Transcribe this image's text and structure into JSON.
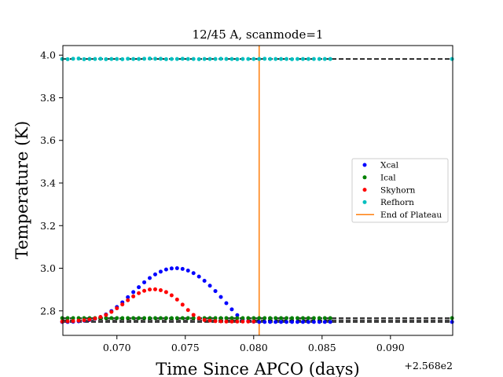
{
  "chart_data": {
    "type": "scatter",
    "title": "12/45 A, scanmode=1",
    "xlabel": "Time Since APCO (days)",
    "ylabel": "Temperature (K)",
    "x_offset_label": "+2.568e2",
    "xlim": [
      0.06605,
      0.09455
    ],
    "ylim": [
      2.685,
      4.045
    ],
    "xticks": [
      0.07,
      0.075,
      0.08,
      0.085,
      0.09
    ],
    "xtick_labels": [
      "0.070",
      "0.075",
      "0.080",
      "0.085",
      "0.090"
    ],
    "yticks": [
      2.8,
      3.0,
      3.2,
      3.4,
      3.6,
      3.8,
      4.0
    ],
    "ytick_labels": [
      "2.8",
      "3.0",
      "3.2",
      "3.4",
      "3.6",
      "3.8",
      "4.0"
    ],
    "grid": false,
    "legend_position": "center-right",
    "end_of_plateau_x": 0.0804,
    "hlines": [
      {
        "y": 3.982,
        "color": "#000000",
        "style": "dashed"
      },
      {
        "y": 2.766,
        "color": "#000000",
        "style": "dashed"
      },
      {
        "y": 2.756,
        "color": "#000000",
        "style": "dashed"
      },
      {
        "y": 2.748,
        "color": "#000000",
        "style": "dashed"
      }
    ],
    "series": [
      {
        "name": "Xcal",
        "color": "#0000ff",
        "x": [
          0.066,
          0.0664,
          0.0668,
          0.0672,
          0.0676,
          0.068,
          0.0684,
          0.0688,
          0.0692,
          0.0696,
          0.07,
          0.0704,
          0.0708,
          0.0712,
          0.0716,
          0.072,
          0.0724,
          0.0728,
          0.0732,
          0.0736,
          0.074,
          0.0744,
          0.0748,
          0.0752,
          0.0756,
          0.076,
          0.0764,
          0.0768,
          0.0772,
          0.0776,
          0.078,
          0.0784,
          0.0788,
          0.0792,
          0.0796,
          0.08,
          0.0804,
          0.0808,
          0.0812,
          0.0816,
          0.082,
          0.0824,
          0.0828,
          0.0832,
          0.0836,
          0.084,
          0.0844,
          0.0848,
          0.0852,
          0.0856,
          0.0945
        ],
        "y": [
          2.748,
          2.748,
          2.749,
          2.751,
          2.754,
          2.757,
          2.763,
          2.771,
          2.783,
          2.799,
          2.818,
          2.84,
          2.864,
          2.888,
          2.911,
          2.934,
          2.954,
          2.971,
          2.984,
          2.994,
          2.999,
          3.0,
          2.997,
          2.989,
          2.977,
          2.961,
          2.941,
          2.918,
          2.893,
          2.865,
          2.836,
          2.807,
          2.78,
          2.76,
          2.752,
          2.749,
          2.748,
          2.748,
          2.748,
          2.748,
          2.748,
          2.748,
          2.748,
          2.748,
          2.748,
          2.748,
          2.748,
          2.748,
          2.748,
          2.748,
          2.748
        ]
      },
      {
        "name": "Ical",
        "color": "#008000",
        "x": [
          0.066,
          0.0664,
          0.0668,
          0.0672,
          0.0676,
          0.068,
          0.0684,
          0.0688,
          0.0692,
          0.0696,
          0.07,
          0.0704,
          0.0708,
          0.0712,
          0.0716,
          0.072,
          0.0724,
          0.0728,
          0.0732,
          0.0736,
          0.074,
          0.0744,
          0.0748,
          0.0752,
          0.0756,
          0.076,
          0.0764,
          0.0768,
          0.0772,
          0.0776,
          0.078,
          0.0784,
          0.0788,
          0.0792,
          0.0796,
          0.08,
          0.0804,
          0.0808,
          0.0812,
          0.0816,
          0.082,
          0.0824,
          0.0828,
          0.0832,
          0.0836,
          0.084,
          0.0844,
          0.0848,
          0.0852,
          0.0856,
          0.0945
        ],
        "y": [
          2.766,
          2.766,
          2.766,
          2.766,
          2.766,
          2.766,
          2.766,
          2.766,
          2.766,
          2.766,
          2.766,
          2.766,
          2.766,
          2.766,
          2.766,
          2.766,
          2.766,
          2.766,
          2.766,
          2.766,
          2.766,
          2.766,
          2.766,
          2.766,
          2.766,
          2.766,
          2.766,
          2.766,
          2.766,
          2.766,
          2.766,
          2.766,
          2.766,
          2.766,
          2.766,
          2.766,
          2.766,
          2.766,
          2.766,
          2.766,
          2.766,
          2.766,
          2.766,
          2.766,
          2.766,
          2.766,
          2.766,
          2.766,
          2.766,
          2.766,
          2.766
        ]
      },
      {
        "name": "Skyhorn",
        "color": "#ff0000",
        "x": [
          0.066,
          0.0664,
          0.0668,
          0.0672,
          0.0676,
          0.068,
          0.0684,
          0.0688,
          0.0692,
          0.0696,
          0.07,
          0.0704,
          0.0708,
          0.0712,
          0.0716,
          0.072,
          0.0724,
          0.0728,
          0.0732,
          0.0736,
          0.074,
          0.0744,
          0.0748,
          0.0752,
          0.0756,
          0.076,
          0.0764,
          0.0768,
          0.0772,
          0.0776,
          0.078,
          0.0784,
          0.0788,
          0.0792,
          0.0796,
          0.08
        ],
        "y": [
          2.75,
          2.751,
          2.752,
          2.754,
          2.756,
          2.759,
          2.764,
          2.771,
          2.781,
          2.795,
          2.812,
          2.83,
          2.85,
          2.868,
          2.883,
          2.894,
          2.9,
          2.901,
          2.897,
          2.888,
          2.873,
          2.853,
          2.829,
          2.804,
          2.781,
          2.765,
          2.757,
          2.754,
          2.752,
          2.751,
          2.75,
          2.75,
          2.75,
          2.75,
          2.75,
          2.75
        ]
      },
      {
        "name": "Refhorn",
        "color": "#00bfbf",
        "x": [
          0.066,
          0.0664,
          0.0668,
          0.0672,
          0.0676,
          0.068,
          0.0684,
          0.0688,
          0.0692,
          0.0696,
          0.07,
          0.0704,
          0.0708,
          0.0712,
          0.0716,
          0.072,
          0.0724,
          0.0728,
          0.0732,
          0.0736,
          0.074,
          0.0744,
          0.0748,
          0.0752,
          0.0756,
          0.076,
          0.0764,
          0.0768,
          0.0772,
          0.0776,
          0.078,
          0.0784,
          0.0788,
          0.0792,
          0.0796,
          0.08,
          0.0804,
          0.0808,
          0.0812,
          0.0816,
          0.082,
          0.0824,
          0.0828,
          0.0832,
          0.0836,
          0.084,
          0.0844,
          0.0848,
          0.0852,
          0.0856,
          0.0945
        ],
        "y": [
          3.982,
          3.981,
          3.983,
          3.984,
          3.981,
          3.982,
          3.982,
          3.983,
          3.981,
          3.982,
          3.982,
          3.981,
          3.983,
          3.982,
          3.982,
          3.983,
          3.984,
          3.983,
          3.983,
          3.981,
          3.982,
          3.982,
          3.983,
          3.982,
          3.982,
          3.981,
          3.982,
          3.982,
          3.982,
          3.983,
          3.982,
          3.982,
          3.981,
          3.982,
          3.982,
          3.982,
          3.982,
          3.983,
          3.982,
          3.982,
          3.982,
          3.982,
          3.981,
          3.982,
          3.982,
          3.982,
          3.982,
          3.982,
          3.982,
          3.982,
          3.982
        ]
      }
    ],
    "legend": [
      {
        "label": "Xcal",
        "color": "#0000ff",
        "kind": "marker"
      },
      {
        "label": "Ical",
        "color": "#008000",
        "kind": "marker"
      },
      {
        "label": "Skyhorn",
        "color": "#ff0000",
        "kind": "marker"
      },
      {
        "label": "Refhorn",
        "color": "#00bfbf",
        "kind": "marker"
      },
      {
        "label": "End of Plateau",
        "color": "#ff7f0e",
        "kind": "line"
      }
    ]
  }
}
